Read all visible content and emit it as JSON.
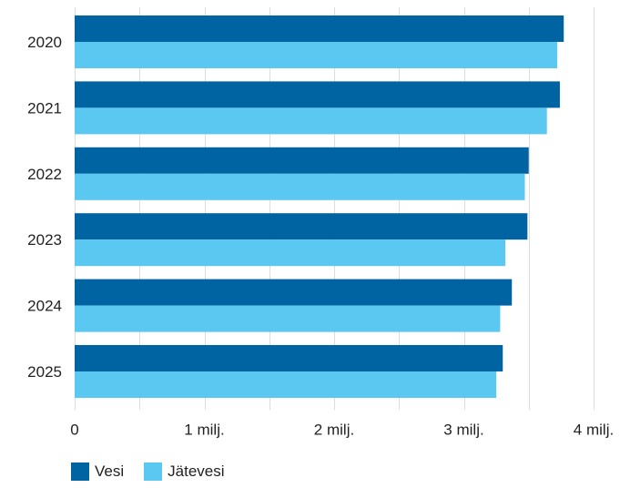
{
  "chart_data": {
    "type": "bar",
    "orientation": "horizontal",
    "categories": [
      "2020",
      "2021",
      "2022",
      "2023",
      "2024",
      "2025"
    ],
    "series": [
      {
        "name": "Vesi",
        "color": "#0064a3",
        "values": [
          3.77,
          3.74,
          3.5,
          3.49,
          3.37,
          3.3
        ]
      },
      {
        "name": "Jätevesi",
        "color": "#5bc8f2",
        "values": [
          3.72,
          3.64,
          3.47,
          3.32,
          3.28,
          3.25
        ]
      }
    ],
    "xlim": [
      0,
      4
    ],
    "x_ticks": [
      {
        "value": 0,
        "label": "0"
      },
      {
        "value": 1,
        "label": "1 milj."
      },
      {
        "value": 2,
        "label": "2 milj."
      },
      {
        "value": 3,
        "label": "3 milj."
      },
      {
        "value": 4,
        "label": "4 milj."
      }
    ],
    "gridlines": true,
    "legend_position": "bottom-left",
    "title": "",
    "xlabel": "",
    "ylabel": ""
  }
}
